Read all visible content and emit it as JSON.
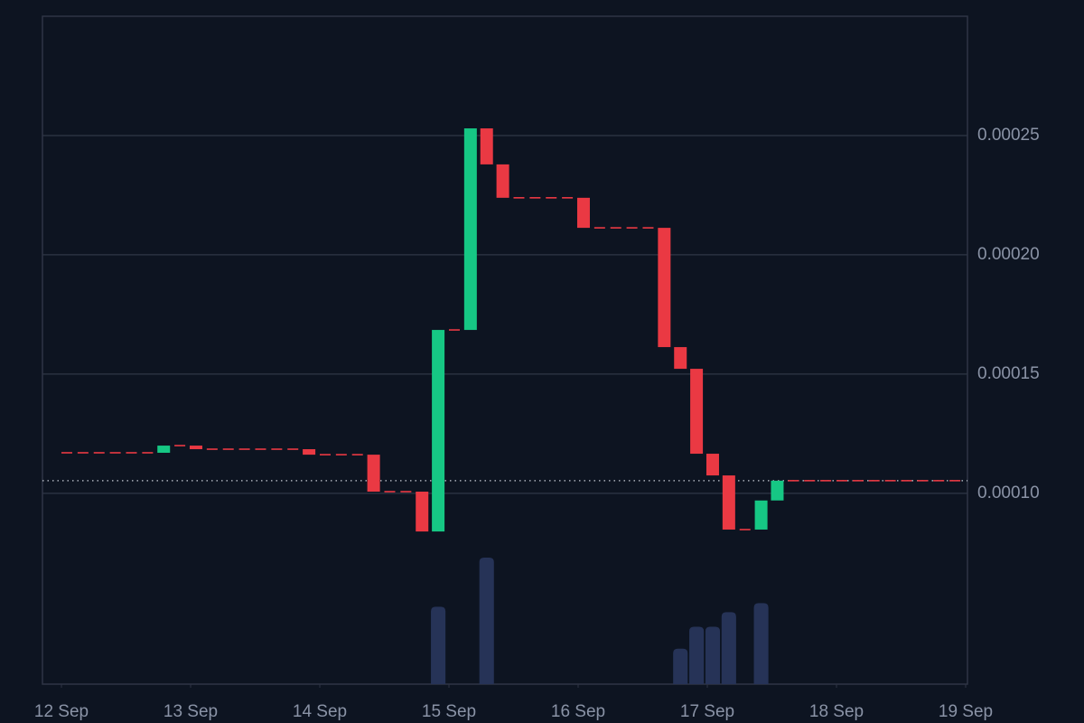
{
  "chart_data": {
    "type": "candlestick",
    "x": [
      12.0417,
      12.1667,
      12.2917,
      12.4167,
      12.5417,
      12.6667,
      12.7917,
      12.9167,
      13.0417,
      13.1667,
      13.2917,
      13.4167,
      13.5417,
      13.6667,
      13.7917,
      13.9167,
      14.0417,
      14.1667,
      14.2917,
      14.4167,
      14.5417,
      14.6667,
      14.7917,
      14.9167,
      15.0417,
      15.1667,
      15.2917,
      15.4167,
      15.5417,
      15.6667,
      15.7917,
      15.9167,
      16.0417,
      16.1667,
      16.2917,
      16.4167,
      16.5417,
      16.6667,
      16.7917,
      16.9167,
      17.0417,
      17.1667,
      17.2917,
      17.4167,
      17.5417,
      17.6667,
      17.7917,
      17.9167,
      18.0417,
      18.1667,
      18.2917,
      18.4167,
      18.5417,
      18.6667,
      18.7917,
      18.9167
    ],
    "open": [
      0.000117,
      0.000117,
      0.000117,
      0.000117,
      0.000117,
      0.000117,
      0.000117,
      0.00012,
      0.00012,
      0.0001185,
      0.0001185,
      0.0001185,
      0.0001185,
      0.0001185,
      0.0001185,
      0.0001185,
      0.0001162,
      0.0001162,
      0.0001162,
      0.0001162,
      0.0001007,
      0.0001007,
      0.0001007,
      8.4e-05,
      0.0001685,
      0.0001685,
      0.000253,
      0.0002379,
      0.0002239,
      0.0002239,
      0.0002239,
      0.0002239,
      0.0002239,
      0.0002113,
      0.0002113,
      0.0002113,
      0.0002113,
      0.0002113,
      0.0001613,
      0.0001522,
      0.0001166,
      0.0001075,
      8.48e-05,
      8.48e-05,
      9.7e-05,
      0.0001053,
      0.0001053,
      0.0001053,
      0.0001053,
      0.0001053,
      0.0001053,
      0.0001053,
      0.0001053,
      0.0001053,
      0.0001053,
      0.0001053
    ],
    "close": [
      0.000117,
      0.000117,
      0.000117,
      0.000117,
      0.000117,
      0.000117,
      0.00012,
      0.00012,
      0.0001185,
      0.0001185,
      0.0001185,
      0.0001185,
      0.0001185,
      0.0001185,
      0.0001185,
      0.0001162,
      0.0001162,
      0.0001162,
      0.0001162,
      0.0001007,
      0.0001007,
      0.0001007,
      8.4e-05,
      0.0001685,
      0.0001685,
      0.000253,
      0.0002379,
      0.0002239,
      0.0002239,
      0.0002239,
      0.0002239,
      0.0002239,
      0.0002113,
      0.0002113,
      0.0002113,
      0.0002113,
      0.0002113,
      0.0001613,
      0.0001522,
      0.0001166,
      0.0001075,
      8.48e-05,
      8.48e-05,
      9.7e-05,
      0.0001053,
      0.0001053,
      0.0001053,
      0.0001053,
      0.0001053,
      0.0001053,
      0.0001053,
      0.0001053,
      0.0001053,
      0.0001053,
      0.0001053,
      0.0001053
    ],
    "volume": [
      0,
      0,
      0,
      0,
      0,
      0,
      0,
      0,
      0,
      0,
      0,
      0,
      0,
      0,
      0,
      0,
      0,
      0,
      0,
      0,
      0,
      0,
      0,
      85,
      0,
      0,
      139,
      0,
      0,
      0,
      0,
      0,
      0,
      0,
      0,
      0,
      0,
      0,
      39,
      63,
      63,
      79,
      0,
      89,
      0,
      0,
      0,
      0,
      0,
      0,
      0,
      0,
      0,
      0,
      0,
      0
    ],
    "up_color": "#16c784",
    "down_color": "#ea3943",
    "volume_color": "#263357",
    "xlim": [
      11.853,
      19.014
    ],
    "xticks": [
      {
        "value": 12,
        "label": "12 Sep"
      },
      {
        "value": 13,
        "label": "13 Sep"
      },
      {
        "value": 14,
        "label": "14 Sep"
      },
      {
        "value": 15,
        "label": "15 Sep"
      },
      {
        "value": 16,
        "label": "16 Sep"
      },
      {
        "value": 17,
        "label": "17 Sep"
      },
      {
        "value": 18,
        "label": "18 Sep"
      },
      {
        "value": 19,
        "label": "19 Sep"
      }
    ],
    "ylim": [
      2e-05,
      0.0003
    ],
    "yticks": [
      {
        "value": 0.0001,
        "label": "0.00010"
      },
      {
        "value": 0.00015,
        "label": "0.00015"
      },
      {
        "value": 0.0002,
        "label": "0.00020"
      },
      {
        "value": 0.00025,
        "label": "0.00025"
      }
    ],
    "grid": true
  }
}
